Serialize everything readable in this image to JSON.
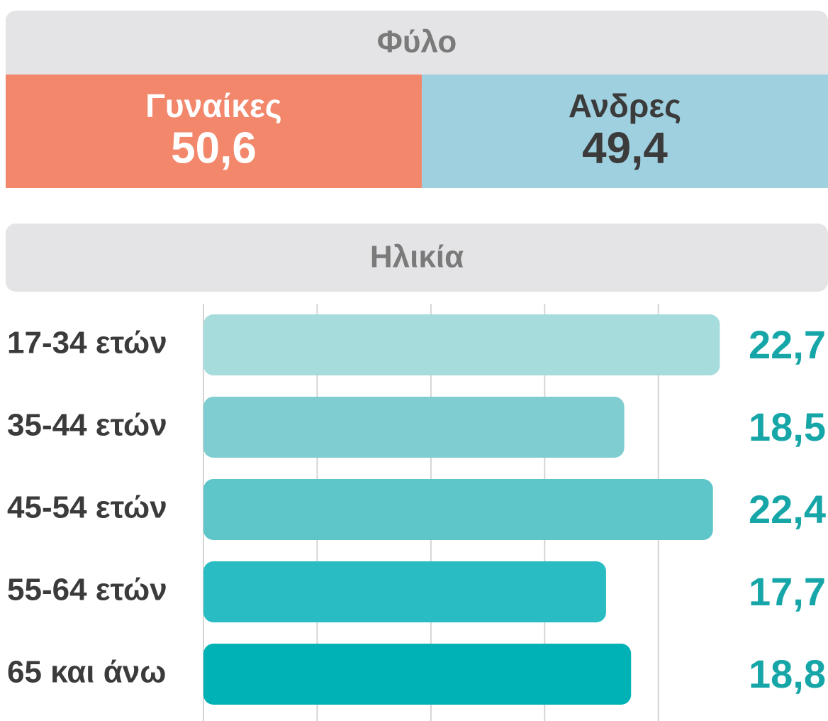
{
  "chart_data": [
    {
      "type": "stacked_bar",
      "title": "Φύλο",
      "categories": [
        "Γυναίκες",
        "Ανδρες"
      ],
      "values": [
        50.6,
        49.4
      ],
      "value_labels": [
        "50,6",
        "49,4"
      ],
      "colors": [
        "#f2876b",
        "#9fd0e0"
      ],
      "text_colors": [
        "#ffffff",
        "#3b3b3b"
      ]
    },
    {
      "type": "hbar",
      "title": "Ηλικία",
      "categories": [
        "17-34 ετών",
        "35-44 ετών",
        "45-54 ετών",
        "55-64 ετών",
        "65 και άνω"
      ],
      "values": [
        22.7,
        18.5,
        22.4,
        17.7,
        18.8
      ],
      "value_labels": [
        "22,7",
        "18,5",
        "22,4",
        "17,7",
        "18,8"
      ],
      "colors": [
        "#a6dcdc",
        "#7fcdd0",
        "#5ec5c8",
        "#29bcc3",
        "#00b1b6"
      ],
      "xlim": [
        0,
        23
      ],
      "xticks": [
        0,
        5,
        10,
        15,
        20
      ],
      "grid": true
    }
  ]
}
